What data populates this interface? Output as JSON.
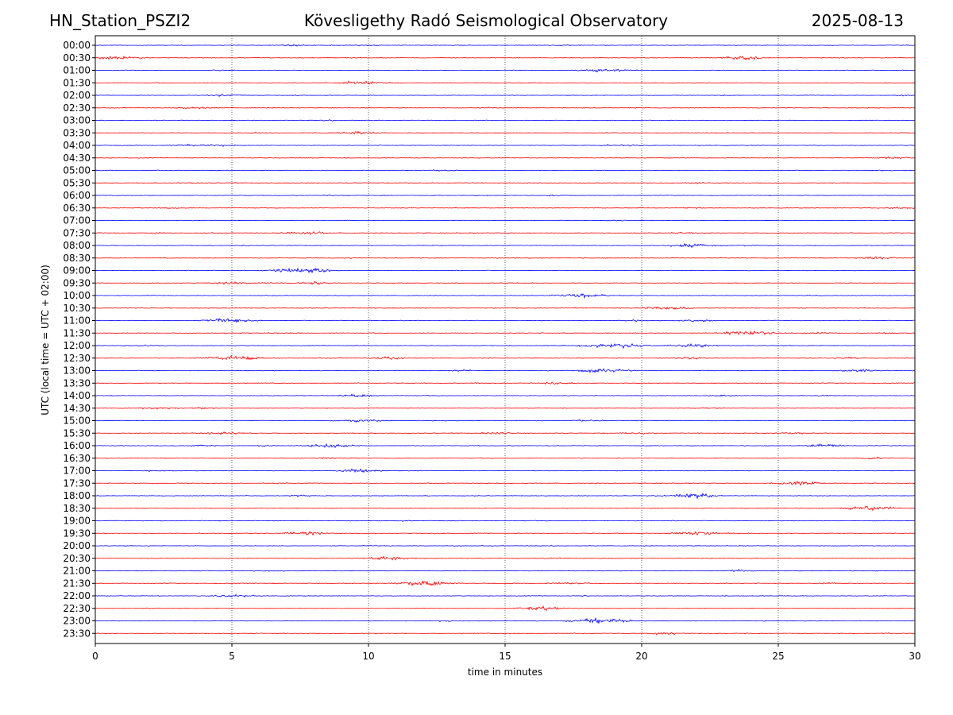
{
  "header": {
    "station": "HN_Station_PSZI2",
    "observatory": "Kövesligethy Radó Seismological Observatory",
    "date": "2025-08-13"
  },
  "chart_data": {
    "type": "line",
    "xlabel": "time in minutes",
    "ylabel": "UTC (local time = UTC + 02:00)",
    "xlim": [
      0,
      30
    ],
    "xticks": [
      0,
      5,
      10,
      15,
      20,
      25,
      30
    ],
    "xgrid": [
      5,
      10,
      15,
      20,
      25
    ],
    "rows": [
      "00:00",
      "00:30",
      "01:00",
      "01:30",
      "02:00",
      "02:30",
      "03:00",
      "03:30",
      "04:00",
      "04:30",
      "05:00",
      "05:30",
      "06:00",
      "06:30",
      "07:00",
      "07:30",
      "08:00",
      "08:30",
      "09:00",
      "09:30",
      "10:00",
      "10:30",
      "11:00",
      "11:30",
      "12:00",
      "12:30",
      "13:00",
      "13:30",
      "14:00",
      "14:30",
      "15:00",
      "15:30",
      "16:00",
      "16:30",
      "17:00",
      "17:30",
      "18:00",
      "18:30",
      "19:00",
      "19:30",
      "20:00",
      "20:30",
      "21:00",
      "21:30",
      "22:00",
      "22:30",
      "23:00",
      "23:30"
    ],
    "colors": [
      "#0000ff",
      "#ff0000"
    ],
    "events": [
      [
        0,
        7.2,
        4
      ],
      [
        0,
        10.1,
        3
      ],
      [
        0,
        17.0,
        2
      ],
      [
        1,
        0.8,
        7
      ],
      [
        1,
        23.7,
        8
      ],
      [
        2,
        18.6,
        7
      ],
      [
        2,
        4.5,
        2
      ],
      [
        3,
        9.8,
        8
      ],
      [
        3,
        29.0,
        2
      ],
      [
        4,
        4.7,
        5
      ],
      [
        4,
        29.5,
        2
      ],
      [
        4,
        7.3,
        2
      ],
      [
        4,
        22.8,
        2
      ],
      [
        5,
        3.7,
        6
      ],
      [
        5,
        14.5,
        3
      ],
      [
        6,
        8.5,
        2
      ],
      [
        7,
        9.6,
        6
      ],
      [
        7,
        6.0,
        2
      ],
      [
        8,
        3.5,
        5
      ],
      [
        8,
        4.7,
        3
      ],
      [
        8,
        19.3,
        6
      ],
      [
        9,
        29.2,
        5
      ],
      [
        9,
        20.8,
        2
      ],
      [
        10,
        12.8,
        3
      ],
      [
        10,
        0.3,
        2
      ],
      [
        10,
        29.0,
        2
      ],
      [
        11,
        3.4,
        2
      ],
      [
        11,
        22.0,
        3
      ],
      [
        12,
        17.0,
        3
      ],
      [
        12,
        8.5,
        2
      ],
      [
        13,
        2.5,
        3
      ],
      [
        13,
        29.5,
        4
      ],
      [
        13,
        22.0,
        3
      ],
      [
        14,
        19.0,
        2
      ],
      [
        15,
        7.7,
        7
      ],
      [
        15,
        2.3,
        3
      ],
      [
        15,
        21.5,
        3
      ],
      [
        16,
        21.8,
        8
      ],
      [
        16,
        5.2,
        2
      ],
      [
        16,
        23.8,
        2
      ],
      [
        17,
        28.6,
        6
      ],
      [
        17,
        9.4,
        2
      ],
      [
        17,
        14.5,
        2
      ],
      [
        18,
        7.7,
        10
      ],
      [
        18,
        6.8,
        3
      ],
      [
        19,
        4.8,
        6
      ],
      [
        19,
        8.0,
        6
      ],
      [
        19,
        6.6,
        2
      ],
      [
        20,
        17.8,
        10
      ],
      [
        20,
        26.3,
        2
      ],
      [
        21,
        20.9,
        8
      ],
      [
        21,
        17.5,
        2
      ],
      [
        22,
        4.9,
        9
      ],
      [
        22,
        21.9,
        6
      ],
      [
        22,
        19.7,
        3
      ],
      [
        23,
        23.9,
        10
      ],
      [
        23,
        26.5,
        4
      ],
      [
        23,
        29.0,
        3
      ],
      [
        23,
        6.6,
        2
      ],
      [
        24,
        19.0,
        11
      ],
      [
        24,
        22.0,
        7
      ],
      [
        24,
        1.5,
        3
      ],
      [
        25,
        5.0,
        10
      ],
      [
        25,
        10.7,
        6
      ],
      [
        25,
        21.7,
        5
      ],
      [
        25,
        27.5,
        4
      ],
      [
        26,
        18.6,
        9
      ],
      [
        26,
        28.0,
        6
      ],
      [
        26,
        13.5,
        3
      ],
      [
        27,
        17.0,
        6
      ],
      [
        27,
        14.0,
        3
      ],
      [
        28,
        9.6,
        6
      ],
      [
        28,
        23.0,
        4
      ],
      [
        28,
        26.7,
        3
      ],
      [
        29,
        2.3,
        5
      ],
      [
        29,
        3.9,
        4
      ],
      [
        29,
        22.5,
        3
      ],
      [
        30,
        9.6,
        6
      ],
      [
        30,
        18.0,
        4
      ],
      [
        31,
        4.5,
        6
      ],
      [
        31,
        14.6,
        5
      ],
      [
        31,
        25.5,
        4
      ],
      [
        31,
        19.8,
        3
      ],
      [
        32,
        8.6,
        8
      ],
      [
        32,
        4.0,
        4
      ],
      [
        32,
        26.7,
        7
      ],
      [
        32,
        6.3,
        3
      ],
      [
        33,
        28.5,
        5
      ],
      [
        33,
        8.5,
        3
      ],
      [
        34,
        9.6,
        7
      ],
      [
        34,
        2.3,
        3
      ],
      [
        35,
        25.8,
        8
      ],
      [
        35,
        6.7,
        2
      ],
      [
        36,
        22.0,
        9
      ],
      [
        36,
        7.5,
        3
      ],
      [
        37,
        28.3,
        10
      ],
      [
        37,
        14.3,
        2
      ],
      [
        38,
        11.3,
        2
      ],
      [
        39,
        7.8,
        8
      ],
      [
        39,
        22.0,
        8
      ],
      [
        39,
        12.6,
        3
      ],
      [
        40,
        13.0,
        2
      ],
      [
        41,
        10.7,
        8
      ],
      [
        41,
        16.8,
        2
      ],
      [
        42,
        23.5,
        5
      ],
      [
        42,
        6.3,
        2
      ],
      [
        43,
        12.0,
        10
      ],
      [
        43,
        17.3,
        4
      ],
      [
        43,
        27.0,
        3
      ],
      [
        44,
        5.0,
        7
      ],
      [
        44,
        17.7,
        2
      ],
      [
        45,
        16.3,
        8
      ],
      [
        45,
        1.8,
        2
      ],
      [
        46,
        18.5,
        11
      ],
      [
        46,
        12.8,
        3
      ],
      [
        47,
        20.8,
        5
      ],
      [
        47,
        29.0,
        2
      ]
    ]
  }
}
